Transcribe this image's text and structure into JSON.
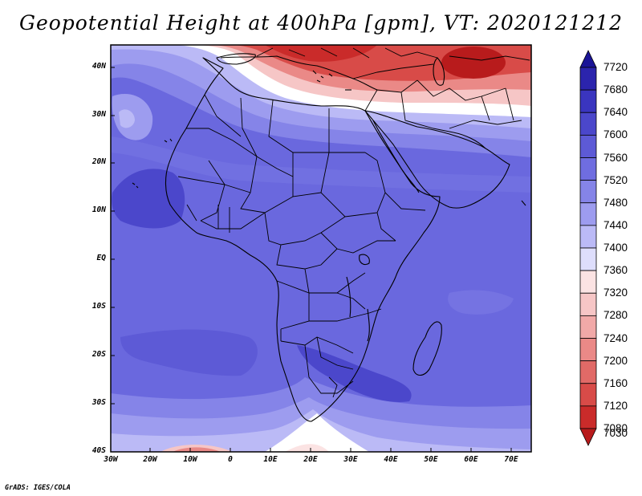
{
  "title": "Geopotential Height at 400hPa [gpm], VT: 2020121212",
  "credit": "GrADS: IGES/COLA",
  "lat_labels": [
    "40N",
    "30N",
    "20N",
    "10N",
    "EQ",
    "10S",
    "20S",
    "30S",
    "40S"
  ],
  "lon_labels": [
    "30W",
    "20W",
    "10W",
    "0",
    "10E",
    "20E",
    "30E",
    "40E",
    "50E",
    "60E",
    "70E"
  ],
  "colorbar": {
    "labels": [
      "7720",
      "7680",
      "7640",
      "7600",
      "7560",
      "7520",
      "7480",
      "7440",
      "7400",
      "7360",
      "7320",
      "7280",
      "7240",
      "7200",
      "7160",
      "7120",
      "7080",
      "7030"
    ],
    "colors": [
      "#1a1496",
      "#2b24ad",
      "#3a35bf",
      "#4b47cb",
      "#5d5ad6",
      "#6f6de0",
      "#8584e8",
      "#9d9cef",
      "#bbbaf6",
      "#dedefc",
      "#fbe3e3",
      "#f6c6c6",
      "#f1a9a8",
      "#ea8987",
      "#e16a67",
      "#d84b48",
      "#ca2b2a",
      "#b81b1c"
    ]
  },
  "map": {
    "type": "filled-contour",
    "variable": "Geopotential Height",
    "level": "400hPa",
    "units": "gpm",
    "valid_time": "2020121212",
    "lon_range": [
      -30,
      75
    ],
    "lat_range": [
      -40,
      45
    ],
    "colors": {
      "ocean": "#6a68de",
      "land": "#5d5ad6",
      "trough": "#4b47cb",
      "light_band": "#9d9cef",
      "pale_band": "#bbbaf6",
      "white_band": "#ffffff",
      "warm_1": "#f6c6c6",
      "warm_2": "#ea8987",
      "warm_3": "#d84b48",
      "warm_4": "#b81b1c",
      "outline": "#000000"
    }
  }
}
